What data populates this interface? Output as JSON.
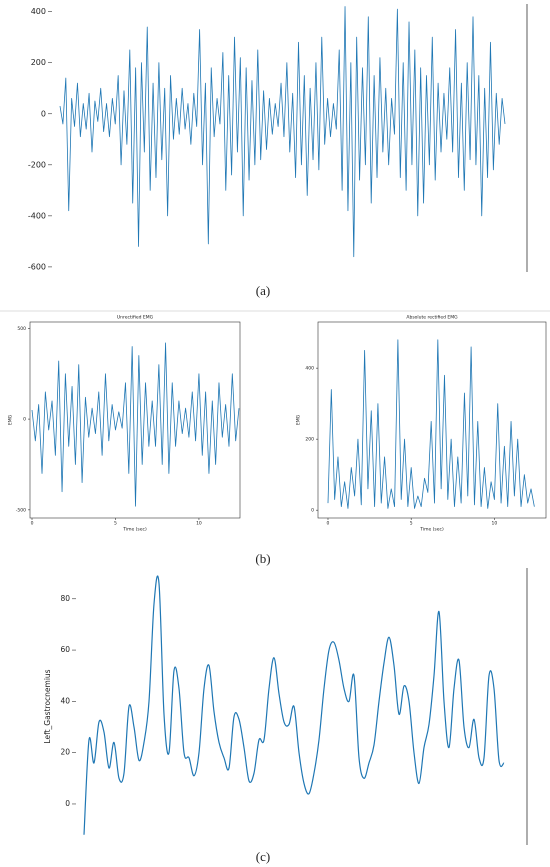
{
  "captions": [
    "(a)",
    "(b)",
    "(c)"
  ],
  "chart_data": [
    {
      "type": "line",
      "color": "#1f77b4",
      "ylim": [
        -620,
        430
      ],
      "yticks": [
        -600,
        -400,
        -200,
        0,
        200,
        400
      ],
      "values": [
        30,
        -40,
        140,
        -380,
        60,
        -50,
        120,
        -90,
        40,
        -60,
        80,
        -150,
        50,
        -30,
        100,
        -70,
        40,
        -90,
        60,
        -40,
        150,
        -200,
        90,
        -120,
        250,
        -350,
        180,
        -520,
        200,
        -150,
        340,
        -300,
        120,
        -250,
        200,
        -180,
        100,
        -400,
        150,
        -100,
        60,
        -80,
        100,
        -60,
        40,
        -120,
        80,
        -50,
        330,
        -200,
        120,
        -510,
        180,
        -90,
        60,
        -40,
        240,
        -300,
        150,
        -240,
        300,
        -150,
        220,
        -400,
        180,
        -260,
        130,
        -200,
        250,
        -180,
        90,
        -140,
        60,
        -80,
        40,
        -50,
        120,
        -90,
        200,
        -150,
        80,
        -250,
        280,
        -200,
        150,
        -320,
        100,
        -180,
        200,
        -220,
        300,
        -120,
        60,
        -90,
        40,
        -60,
        250,
        -300,
        420,
        -380,
        200,
        -560,
        300,
        -260,
        180,
        -200,
        380,
        -350,
        150,
        -250,
        220,
        -150,
        100,
        -200,
        60,
        -80,
        410,
        -250,
        200,
        -300,
        360,
        -200,
        250,
        -400,
        180,
        -350,
        150,
        -200,
        300,
        -260,
        120,
        -150,
        80,
        -100,
        180,
        -150,
        330,
        -250,
        120,
        -300,
        200,
        -180,
        380,
        -200,
        150,
        -400,
        100,
        -250,
        280,
        -220,
        80,
        -120,
        60,
        -40
      ]
    },
    {
      "type": "line",
      "title": "Unrectified EMG",
      "xlabel": "Time (sec)",
      "ylabel": "EMG",
      "color": "#1f77b4",
      "xlim": [
        -0.12,
        12.46
      ],
      "xticks": [
        0,
        5,
        10
      ],
      "ylim": [
        -545,
        535
      ],
      "yticks": [
        -500,
        0,
        500
      ],
      "x": [
        0,
        0.2,
        0.4,
        0.6,
        0.8,
        1,
        1.2,
        1.4,
        1.6,
        1.8,
        2,
        2.2,
        2.4,
        2.6,
        2.8,
        3,
        3.2,
        3.4,
        3.6,
        3.8,
        4,
        4.2,
        4.4,
        4.6,
        4.8,
        5,
        5.2,
        5.4,
        5.6,
        5.8,
        6,
        6.2,
        6.4,
        6.6,
        6.8,
        7,
        7.2,
        7.4,
        7.6,
        7.8,
        8,
        8.2,
        8.4,
        8.6,
        8.8,
        9,
        9.2,
        9.4,
        9.6,
        9.8,
        10,
        10.2,
        10.4,
        10.6,
        10.8,
        11,
        11.2,
        11.4,
        11.6,
        11.8,
        12,
        12.2,
        12.4
      ],
      "values": [
        50,
        -120,
        80,
        -300,
        150,
        -60,
        100,
        -200,
        320,
        -400,
        250,
        -150,
        180,
        -250,
        300,
        -350,
        120,
        -100,
        60,
        -80,
        150,
        -200,
        250,
        -120,
        80,
        -60,
        40,
        -50,
        200,
        -300,
        400,
        -480,
        350,
        -250,
        200,
        -150,
        100,
        -150,
        300,
        -250,
        420,
        -300,
        200,
        -150,
        100,
        -80,
        60,
        -100,
        150,
        -120,
        250,
        -200,
        150,
        -300,
        100,
        -250,
        200,
        -100,
        80,
        -150,
        250,
        -120,
        60
      ]
    },
    {
      "type": "line",
      "title": "Absolute rectified EMG",
      "xlabel": "Time (sec)",
      "ylabel": "EMG",
      "color": "#1f77b4",
      "xlim": [
        -0.6,
        13.1
      ],
      "xticks": [
        0,
        5,
        10
      ],
      "ylim": [
        -22,
        530
      ],
      "yticks": [
        0,
        200,
        400
      ],
      "x": [
        0,
        0.2,
        0.4,
        0.6,
        0.8,
        1,
        1.2,
        1.4,
        1.6,
        1.8,
        2,
        2.2,
        2.4,
        2.6,
        2.8,
        3,
        3.2,
        3.4,
        3.6,
        3.8,
        4,
        4.2,
        4.4,
        4.6,
        4.8,
        5,
        5.2,
        5.4,
        5.6,
        5.8,
        6,
        6.2,
        6.4,
        6.6,
        6.8,
        7,
        7.2,
        7.4,
        7.6,
        7.8,
        8,
        8.2,
        8.4,
        8.6,
        8.8,
        9,
        9.2,
        9.4,
        9.6,
        9.8,
        10,
        10.2,
        10.4,
        10.6,
        10.8,
        11,
        11.2,
        11.4,
        11.6,
        11.8,
        12,
        12.2,
        12.4
      ],
      "values": [
        20,
        340,
        30,
        150,
        10,
        80,
        5,
        120,
        40,
        200,
        15,
        450,
        60,
        280,
        10,
        300,
        20,
        150,
        5,
        60,
        10,
        480,
        30,
        200,
        10,
        120,
        5,
        40,
        10,
        90,
        50,
        250,
        20,
        480,
        60,
        380,
        30,
        200,
        10,
        150,
        20,
        330,
        40,
        460,
        15,
        250,
        10,
        120,
        5,
        80,
        30,
        300,
        20,
        180,
        10,
        250,
        40,
        200,
        10,
        100,
        20,
        60,
        10
      ]
    },
    {
      "type": "smooth",
      "ylabel": "Left_Gastrocnemius",
      "color": "#1f77b4",
      "ylim": [
        -16,
        92
      ],
      "yticks": [
        0,
        20,
        40,
        60,
        80
      ],
      "values": [
        -12,
        25,
        16,
        32,
        28,
        14,
        24,
        10,
        12,
        38,
        30,
        17,
        24,
        40,
        78,
        86,
        35,
        20,
        52,
        45,
        20,
        18,
        11,
        20,
        45,
        54,
        36,
        24,
        18,
        14,
        34,
        33,
        22,
        9,
        12,
        25,
        25,
        45,
        57,
        43,
        32,
        31,
        38,
        20,
        8,
        4,
        12,
        25,
        45,
        60,
        63,
        56,
        45,
        40,
        50,
        18,
        10,
        16,
        23,
        40,
        55,
        65,
        54,
        35,
        46,
        40,
        20,
        8,
        22,
        31,
        50,
        75,
        40,
        22,
        45,
        56,
        30,
        22,
        33,
        18,
        18,
        50,
        45,
        17,
        16
      ]
    }
  ]
}
